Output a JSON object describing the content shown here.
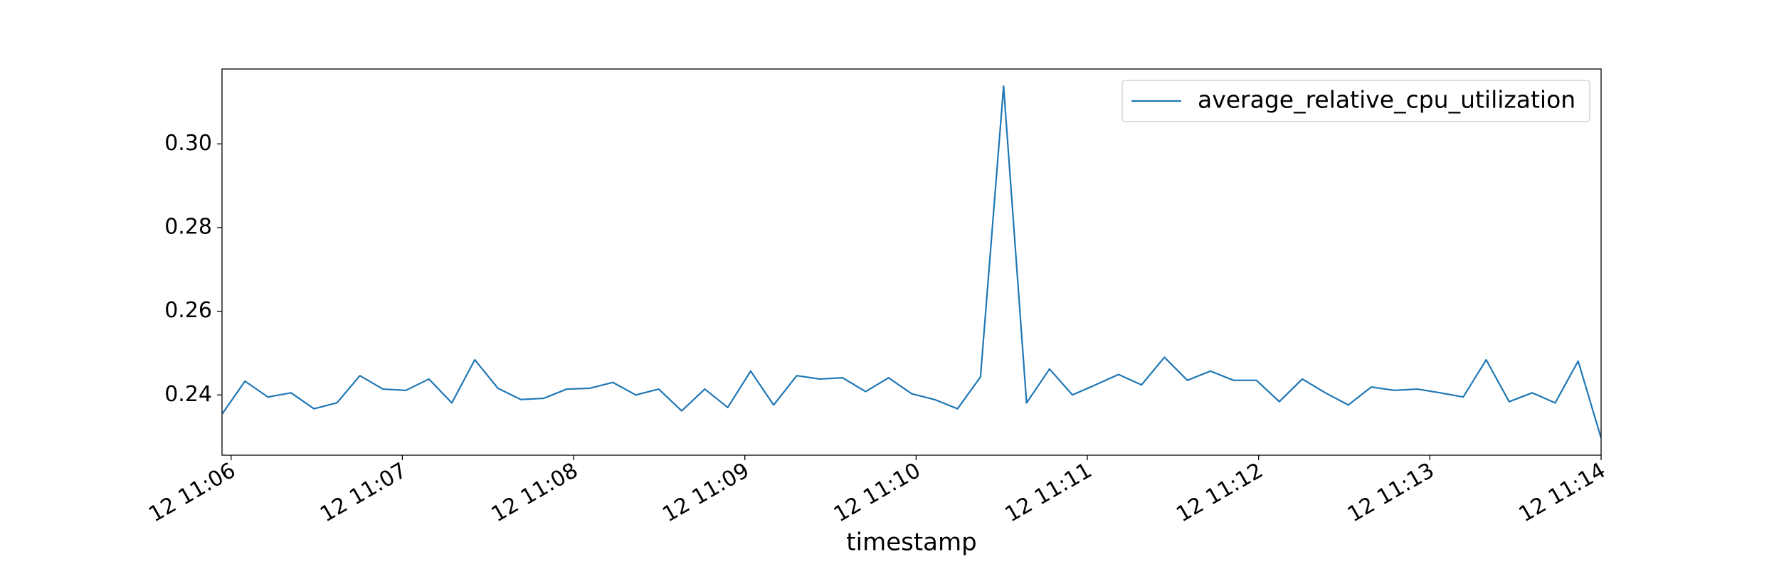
{
  "chart_data": {
    "type": "line",
    "x_label": "timestamp",
    "x": [
      665.947,
      666.081,
      666.215,
      666.35,
      666.484,
      666.618,
      666.752,
      666.887,
      667.021,
      667.155,
      667.289,
      667.423,
      667.558,
      667.692,
      667.826,
      667.96,
      668.095,
      668.229,
      668.363,
      668.497,
      668.631,
      668.766,
      668.9,
      669.034,
      669.168,
      669.303,
      669.437,
      669.571,
      669.705,
      669.839,
      669.974,
      670.108,
      670.242,
      670.376,
      670.511,
      670.645,
      670.779,
      670.913,
      671.047,
      671.182,
      671.316,
      671.45,
      671.584,
      671.719,
      671.853,
      671.987,
      672.121,
      672.255,
      672.39,
      672.524,
      672.658,
      672.792,
      672.927,
      673.061,
      673.195,
      673.329,
      673.463,
      673.598,
      673.732,
      673.866,
      674.0
    ],
    "series": [
      {
        "name": "average_relative_cpu_utilization",
        "color": "#1f77b4",
        "values": [
          0.2354,
          0.2433,
          0.2395,
          0.2405,
          0.2367,
          0.2381,
          0.2446,
          0.2414,
          0.2411,
          0.2438,
          0.2381,
          0.2484,
          0.2416,
          0.2389,
          0.2392,
          0.2414,
          0.2416,
          0.243,
          0.24,
          0.2414,
          0.2362,
          0.2414,
          0.237,
          0.2457,
          0.2376,
          0.2446,
          0.2438,
          0.2441,
          0.2408,
          0.2441,
          0.2403,
          0.2389,
          0.2367,
          0.2443,
          0.3138,
          0.2381,
          0.2462,
          0.24,
          0.2424,
          0.2449,
          0.2424,
          0.249,
          0.2435,
          0.2457,
          0.2435,
          0.2435,
          0.2384,
          0.2438,
          0.2405,
          0.2376,
          0.2419,
          0.2411,
          0.2414,
          0.2405,
          0.2395,
          0.2484,
          0.2384,
          0.2405,
          0.2381,
          0.2481,
          0.2297
        ]
      }
    ],
    "xlim": [
      665.947,
      674.0
    ],
    "xticks": [
      {
        "value": 666,
        "label": "12 11:06"
      },
      {
        "value": 667,
        "label": "12 11:07"
      },
      {
        "value": 668,
        "label": "12 11:08"
      },
      {
        "value": 669,
        "label": "12 11:09"
      },
      {
        "value": 670,
        "label": "12 11:10"
      },
      {
        "value": 671,
        "label": "12 11:11"
      },
      {
        "value": 672,
        "label": "12 11:12"
      },
      {
        "value": 673,
        "label": "12 11:13"
      },
      {
        "value": 674,
        "label": "12 11:14"
      }
    ],
    "ylim": [
      0.2256,
      0.3179
    ],
    "yticks": [
      {
        "value": 0.24,
        "label": "0.24"
      },
      {
        "value": 0.26,
        "label": "0.26"
      },
      {
        "value": 0.28,
        "label": "0.28"
      },
      {
        "value": 0.3,
        "label": "0.30"
      }
    ],
    "legend": "upper right"
  }
}
